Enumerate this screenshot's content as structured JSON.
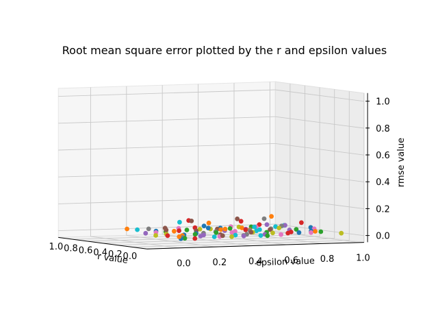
{
  "chart_data": {
    "type": "scatter",
    "projection": "3d",
    "title": "Root mean square error plotted by the r and epsilon values",
    "xlabel": "r value",
    "ylabel": "epsilon value",
    "zlabel": "rmse value",
    "xlim": [
      0.0,
      1.0
    ],
    "ylim": [
      0.0,
      1.0
    ],
    "zlim": [
      0.0,
      1.0
    ],
    "x_ticks": [
      "0.0",
      "0.2",
      "0.4",
      "0.6",
      "0.8",
      "1.0"
    ],
    "y_ticks": [
      "0.0",
      "0.2",
      "0.4",
      "0.6",
      "0.8",
      "1.0"
    ],
    "z_ticks": [
      "0.0",
      "0.2",
      "0.4",
      "0.6",
      "0.8",
      "1.0"
    ],
    "grid": true,
    "colors": [
      "#1f77b4",
      "#ff7f0e",
      "#2ca02c",
      "#d62728",
      "#9467bd",
      "#8c564b",
      "#e377c2",
      "#7f7f7f",
      "#bcbd22",
      "#17becf"
    ],
    "series": [
      {
        "values": [
          [
            0.1,
            0.05,
            0.01
          ],
          [
            0.3,
            0.15,
            0.02
          ],
          [
            0.5,
            0.3,
            0.01
          ],
          [
            0.7,
            0.45,
            0.03
          ],
          [
            0.9,
            0.6,
            0.01
          ],
          [
            0.2,
            0.75,
            0.02
          ],
          [
            0.4,
            0.9,
            0.01
          ],
          [
            0.6,
            0.98,
            0.02
          ],
          [
            0.8,
            0.2,
            0.01
          ],
          [
            1.0,
            0.55,
            0.02
          ]
        ]
      },
      {
        "values": [
          [
            0.05,
            0.02,
            0.03
          ],
          [
            0.25,
            0.12,
            0.02
          ],
          [
            0.45,
            0.35,
            0.09
          ],
          [
            0.65,
            0.5,
            0.02
          ],
          [
            0.85,
            0.7,
            0.01
          ],
          [
            0.15,
            0.82,
            0.03
          ],
          [
            0.35,
            0.4,
            0.05
          ],
          [
            0.55,
            0.62,
            0.02
          ],
          [
            0.75,
            0.28,
            0.01
          ],
          [
            0.95,
            0.1,
            0.02
          ],
          [
            0.5,
            0.72,
            0.12
          ]
        ]
      },
      {
        "values": [
          [
            0.12,
            0.08,
            0.01
          ],
          [
            0.32,
            0.22,
            0.02
          ],
          [
            0.52,
            0.42,
            0.01
          ],
          [
            0.72,
            0.58,
            0.02
          ],
          [
            0.92,
            0.78,
            0.01
          ],
          [
            0.22,
            0.88,
            0.02
          ],
          [
            0.42,
            0.66,
            0.01
          ],
          [
            0.62,
            0.18,
            0.02
          ],
          [
            0.82,
            0.38,
            0.01
          ],
          [
            0.02,
            0.5,
            0.02
          ],
          [
            0.48,
            0.85,
            0.02
          ]
        ]
      },
      {
        "values": [
          [
            0.08,
            0.12,
            0.01
          ],
          [
            0.28,
            0.05,
            0.02
          ],
          [
            0.48,
            0.25,
            0.11
          ],
          [
            0.68,
            0.65,
            0.01
          ],
          [
            0.88,
            0.45,
            0.02
          ],
          [
            0.18,
            0.68,
            0.02
          ],
          [
            0.38,
            0.78,
            0.01
          ],
          [
            0.58,
            0.92,
            0.06
          ],
          [
            0.78,
            0.32,
            0.01
          ],
          [
            0.98,
            0.85,
            0.02
          ],
          [
            0.62,
            0.6,
            0.08
          ]
        ]
      },
      {
        "values": [
          [
            0.15,
            0.18,
            0.02
          ],
          [
            0.35,
            0.28,
            0.01
          ],
          [
            0.55,
            0.48,
            0.02
          ],
          [
            0.75,
            0.68,
            0.01
          ],
          [
            0.95,
            0.88,
            0.02
          ],
          [
            0.05,
            0.38,
            0.02
          ],
          [
            0.25,
            0.58,
            0.01
          ],
          [
            0.45,
            0.8,
            0.02
          ],
          [
            0.65,
            0.08,
            0.01
          ],
          [
            0.85,
            0.94,
            0.02
          ]
        ]
      },
      {
        "values": [
          [
            0.02,
            0.25,
            0.03
          ],
          [
            0.22,
            0.32,
            0.02
          ],
          [
            0.42,
            0.1,
            0.05
          ],
          [
            0.62,
            0.35,
            0.02
          ],
          [
            0.82,
            0.55,
            0.01
          ],
          [
            0.12,
            0.45,
            0.04
          ],
          [
            0.32,
            0.2,
            0.12
          ],
          [
            0.52,
            0.72,
            0.02
          ],
          [
            0.72,
            0.62,
            0.09
          ],
          [
            0.92,
            0.3,
            0.02
          ]
        ]
      },
      {
        "values": [
          [
            0.18,
            0.3,
            0.01
          ],
          [
            0.38,
            0.45,
            0.02
          ],
          [
            0.58,
            0.55,
            0.01
          ],
          [
            0.78,
            0.75,
            0.02
          ],
          [
            0.98,
            0.4,
            0.01
          ],
          [
            0.08,
            0.6,
            0.02
          ],
          [
            0.28,
            0.85,
            0.01
          ],
          [
            0.48,
            0.95,
            0.02
          ],
          [
            0.68,
            0.15,
            0.01
          ],
          [
            0.88,
            0.65,
            0.02
          ]
        ]
      },
      {
        "values": [
          [
            0.1,
            0.4,
            0.02
          ],
          [
            0.3,
            0.5,
            0.01
          ],
          [
            0.5,
            0.6,
            0.02
          ],
          [
            0.7,
            0.8,
            0.01
          ],
          [
            0.9,
            0.2,
            0.02
          ],
          [
            0.2,
            0.1,
            0.01
          ],
          [
            0.4,
            0.3,
            0.02
          ],
          [
            0.6,
            0.45,
            0.01
          ],
          [
            0.8,
            0.9,
            0.02
          ],
          [
            0.55,
            0.7,
            0.1
          ]
        ]
      },
      {
        "values": [
          [
            0.14,
            0.35,
            0.01
          ],
          [
            0.34,
            0.55,
            0.02
          ],
          [
            0.54,
            0.15,
            0.01
          ],
          [
            0.74,
            0.42,
            0.02
          ],
          [
            0.94,
            0.72,
            0.01
          ],
          [
            0.24,
            0.62,
            0.02
          ],
          [
            0.44,
            0.05,
            0.01
          ],
          [
            0.64,
            0.82,
            0.02
          ],
          [
            0.84,
            0.52,
            0.01
          ],
          [
            0.04,
            0.92,
            0.02
          ]
        ]
      },
      {
        "values": [
          [
            0.06,
            0.22,
            0.02
          ],
          [
            0.26,
            0.42,
            0.01
          ],
          [
            0.46,
            0.62,
            0.02
          ],
          [
            0.66,
            0.72,
            0.01
          ],
          [
            0.86,
            0.12,
            0.02
          ],
          [
            0.16,
            0.52,
            0.01
          ],
          [
            0.36,
            0.15,
            0.11
          ],
          [
            0.56,
            0.65,
            0.04
          ],
          [
            0.76,
            0.85,
            0.02
          ],
          [
            0.96,
            0.98,
            0.01
          ]
        ]
      }
    ]
  }
}
